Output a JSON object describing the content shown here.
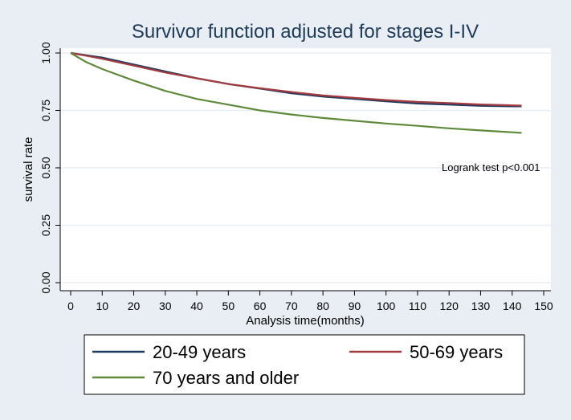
{
  "colors": {
    "background": "#e8eef4",
    "plot_background": "#ffffff",
    "title": "#1f3b5a",
    "grid": "#e8eef4"
  },
  "chart_data": {
    "type": "line",
    "title": "Survivor function adjusted for  stages I-IV",
    "xlabel": "Analysis time(months)",
    "ylabel": "survival rate",
    "xlim": [
      0,
      150
    ],
    "ylim": [
      0,
      1
    ],
    "xticks": [
      "0",
      "10",
      "20",
      "30",
      "40",
      "50",
      "60",
      "70",
      "80",
      "90",
      "100",
      "110",
      "120",
      "130",
      "140",
      "150"
    ],
    "yticks": [
      "0.00",
      "0.25",
      "0.50",
      "0.75",
      "1.00"
    ],
    "annotation": "Logrank test  p<0.001",
    "legend_position": "bottom",
    "grid": true,
    "series": [
      {
        "name": "20-49 years",
        "color": "#1f3a5f",
        "x": [
          0,
          5,
          10,
          20,
          30,
          40,
          50,
          60,
          70,
          80,
          90,
          100,
          110,
          120,
          130,
          140,
          143
        ],
        "y": [
          1.0,
          0.99,
          0.98,
          0.95,
          0.92,
          0.89,
          0.865,
          0.845,
          0.825,
          0.81,
          0.8,
          0.79,
          0.78,
          0.775,
          0.77,
          0.768,
          0.768
        ]
      },
      {
        "name": "50-69 years",
        "color": "#a33a3f",
        "x": [
          0,
          5,
          10,
          20,
          30,
          40,
          50,
          60,
          70,
          80,
          90,
          100,
          110,
          120,
          130,
          140,
          143
        ],
        "y": [
          1.0,
          0.988,
          0.975,
          0.945,
          0.915,
          0.89,
          0.865,
          0.847,
          0.83,
          0.815,
          0.805,
          0.795,
          0.787,
          0.782,
          0.776,
          0.772,
          0.771
        ]
      },
      {
        "name": "70  years and older",
        "color": "#5e8a3a",
        "x": [
          0,
          5,
          10,
          20,
          30,
          40,
          50,
          60,
          70,
          80,
          90,
          100,
          110,
          120,
          130,
          140,
          143
        ],
        "y": [
          1.0,
          0.96,
          0.93,
          0.88,
          0.835,
          0.8,
          0.775,
          0.75,
          0.732,
          0.717,
          0.705,
          0.693,
          0.683,
          0.672,
          0.663,
          0.655,
          0.652
        ]
      }
    ]
  }
}
